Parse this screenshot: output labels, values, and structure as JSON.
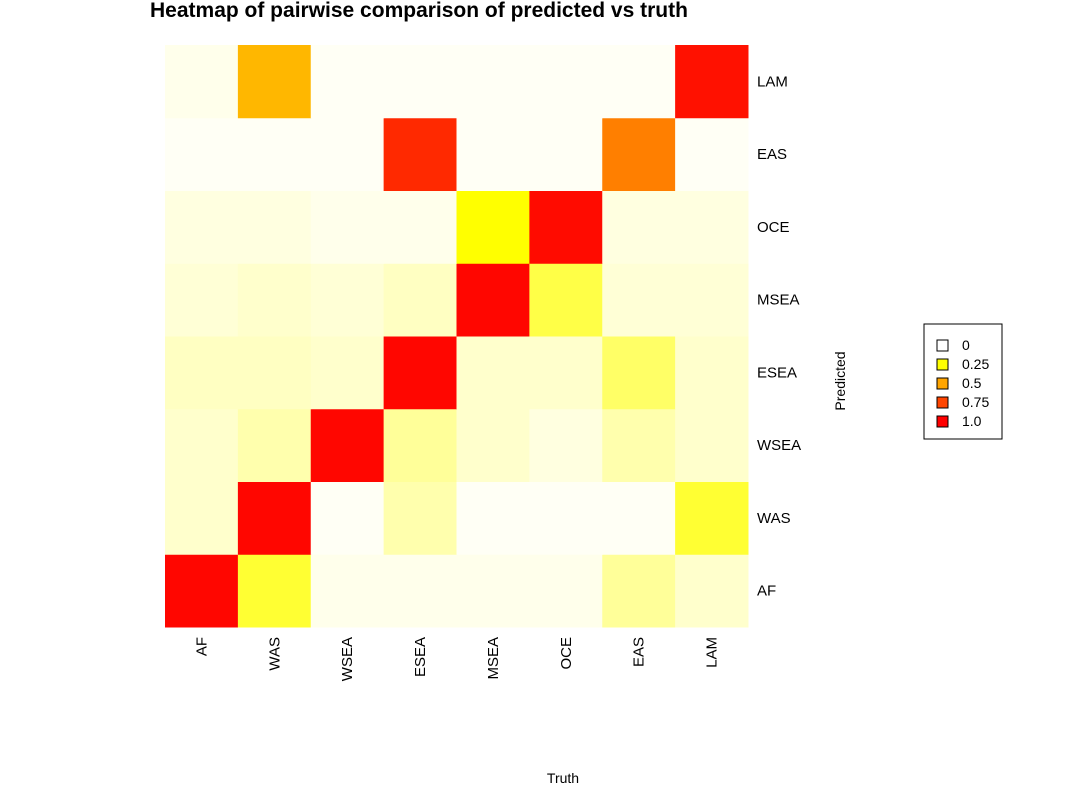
{
  "chart_data": {
    "type": "heatmap",
    "title": "Heatmap of pairwise comparison of predicted vs truth",
    "xlabel": "Truth",
    "ylabel": "Predicted",
    "x_categories": [
      "AF",
      "WAS",
      "WSEA",
      "ESEA",
      "MSEA",
      "OCE",
      "EAS",
      "LAM"
    ],
    "y_categories": [
      "AF",
      "WAS",
      "WSEA",
      "ESEA",
      "MSEA",
      "OCE",
      "EAS",
      "LAM"
    ],
    "values": [
      [
        0.98,
        0.2,
        0.02,
        0.02,
        0.02,
        0.02,
        0.1,
        0.05
      ],
      [
        0.05,
        0.98,
        0.01,
        0.08,
        0.01,
        0.01,
        0.01,
        0.2
      ],
      [
        0.05,
        0.08,
        0.98,
        0.1,
        0.05,
        0.03,
        0.08,
        0.05
      ],
      [
        0.06,
        0.06,
        0.05,
        0.98,
        0.05,
        0.05,
        0.15,
        0.05
      ],
      [
        0.04,
        0.05,
        0.04,
        0.06,
        0.98,
        0.18,
        0.04,
        0.04
      ],
      [
        0.03,
        0.03,
        0.02,
        0.02,
        0.25,
        0.96,
        0.03,
        0.03
      ],
      [
        0.01,
        0.01,
        0.01,
        0.85,
        0.01,
        0.01,
        0.6,
        0.01
      ],
      [
        0.02,
        0.45,
        0.01,
        0.01,
        0.01,
        0.01,
        0.01,
        0.94
      ]
    ],
    "color_scale": [
      "#FFFFFF",
      "#FFFF00",
      "#FFA500",
      "#FF4500",
      "#FF0000"
    ],
    "legend": {
      "position": "right",
      "entries": [
        {
          "label": "0",
          "color": "#FFFFFF"
        },
        {
          "label": "0.25",
          "color": "#FFFF00"
        },
        {
          "label": "0.5",
          "color": "#FFA500"
        },
        {
          "label": "0.75",
          "color": "#FF4500"
        },
        {
          "label": "1.0",
          "color": "#FF0000"
        }
      ]
    },
    "grid": false
  }
}
